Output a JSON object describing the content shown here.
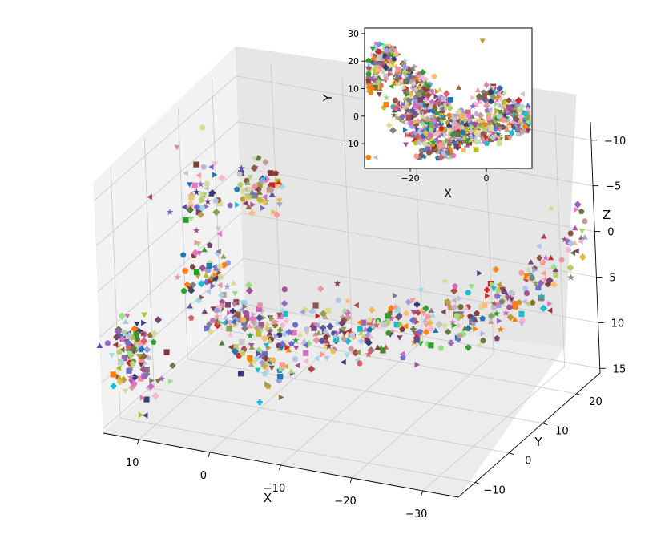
{
  "chart_data": [
    {
      "type": "scatter",
      "projection": "3d",
      "title": "",
      "xlabel": "X",
      "ylabel": "Y",
      "zlabel": "Z",
      "x_ticks": [
        "10",
        "0",
        "−10",
        "−20",
        "−30"
      ],
      "y_ticks": [
        "−10",
        "0",
        "10",
        "20"
      ],
      "z_ticks": [
        "−10",
        "−5",
        "0",
        "5",
        "10",
        "15"
      ],
      "xlim": [
        15,
        -35
      ],
      "ylim": [
        -15,
        27
      ],
      "zlim": [
        15.5,
        -12
      ],
      "grid": true,
      "legend": "none",
      "marker_styles": [
        "circle",
        "square",
        "triangle-up",
        "triangle-down",
        "triangle-left",
        "triangle-right",
        "pentagon",
        "star",
        "diamond",
        "plus"
      ],
      "palette": [
        "#1f77b4",
        "#ff7f0e",
        "#2ca02c",
        "#d62728",
        "#9467bd",
        "#8c564b",
        "#e377c2",
        "#7f7f7f",
        "#bcbd22",
        "#17becf",
        "#aec7e8",
        "#ffbb78",
        "#98df8a",
        "#ff9896",
        "#c5b0d5",
        "#c49c94",
        "#f7b6d2",
        "#c7c7c7",
        "#dbdb8d",
        "#9edae5",
        "#393b79",
        "#5254a3",
        "#6b6ecf",
        "#9c9ede",
        "#637939",
        "#8ca252",
        "#b5cf6b",
        "#cedb9c",
        "#8c6d31",
        "#bd9e39",
        "#e7ba52",
        "#843c39",
        "#ad494a",
        "#d6616b",
        "#e7969c",
        "#7b4173",
        "#a55194",
        "#ce6dbd"
      ],
      "clusters": [
        {
          "x": 10,
          "y": 22,
          "z": 0,
          "spread": [
            1.5,
            1.5,
            1.5
          ],
          "n": 60
        },
        {
          "x": 12,
          "y": 10,
          "z": -3,
          "spread": [
            2,
            2,
            2
          ],
          "n": 50
        },
        {
          "x": 8,
          "y": 2,
          "z": 3,
          "spread": [
            2,
            2,
            2
          ],
          "n": 60
        },
        {
          "x": 14,
          "y": -8,
          "z": 8,
          "spread": [
            1.5,
            1.5,
            1.5
          ],
          "n": 60
        },
        {
          "x": 12,
          "y": -10,
          "z": 10,
          "spread": [
            2,
            2,
            2
          ],
          "n": 50
        },
        {
          "x": 2,
          "y": -3,
          "z": 5,
          "spread": [
            2,
            2,
            1.5
          ],
          "n": 60
        },
        {
          "x": -4,
          "y": -2,
          "z": 5.5,
          "spread": [
            2,
            2,
            1.5
          ],
          "n": 60
        },
        {
          "x": -10,
          "y": 0,
          "z": 6,
          "spread": [
            2,
            2,
            1.5
          ],
          "n": 60
        },
        {
          "x": -5,
          "y": -6,
          "z": 8,
          "spread": [
            2,
            2,
            2
          ],
          "n": 50
        },
        {
          "x": -15,
          "y": 2,
          "z": 6,
          "spread": [
            2,
            2,
            1.5
          ],
          "n": 50
        },
        {
          "x": -20,
          "y": 5,
          "z": 5,
          "spread": [
            2,
            2,
            1.5
          ],
          "n": 50
        },
        {
          "x": -25,
          "y": 8,
          "z": 5,
          "spread": [
            2,
            2,
            1.5
          ],
          "n": 50
        },
        {
          "x": -28,
          "y": 14,
          "z": 4.5,
          "spread": [
            1.5,
            2,
            1.5
          ],
          "n": 50
        },
        {
          "x": -31,
          "y": 20,
          "z": 3,
          "spread": [
            1.5,
            2,
            1.5
          ],
          "n": 40
        },
        {
          "x": -33,
          "y": 26,
          "z": 0,
          "spread": [
            1,
            1.5,
            1.5
          ],
          "n": 20
        }
      ]
    },
    {
      "type": "scatter",
      "title": "",
      "xlabel": "X",
      "ylabel": "Y",
      "x_ticks": [
        "−20",
        "0"
      ],
      "y_ticks": [
        "30",
        "20",
        "10",
        "0",
        "−10"
      ],
      "xlim": [
        -32,
        12
      ],
      "ylim": [
        -19,
        32
      ],
      "grid": false,
      "legend": "none",
      "outliers": [
        {
          "x": -1,
          "y": 27.5
        },
        {
          "x": -29,
          "y": -15
        },
        {
          "x": -31,
          "y": -15
        }
      ],
      "clusters": [
        {
          "x": -28,
          "y": 21,
          "spread": [
            2.5,
            2.5
          ],
          "n": 70
        },
        {
          "x": -22,
          "y": 15,
          "spread": [
            2.5,
            3
          ],
          "n": 70
        },
        {
          "x": -17,
          "y": 10,
          "spread": [
            2.5,
            2.5
          ],
          "n": 70
        },
        {
          "x": -20,
          "y": 2,
          "spread": [
            3,
            3
          ],
          "n": 80
        },
        {
          "x": -12,
          "y": 2,
          "spread": [
            3,
            3
          ],
          "n": 80
        },
        {
          "x": -17,
          "y": -6,
          "spread": [
            3,
            3
          ],
          "n": 80
        },
        {
          "x": -9,
          "y": -7,
          "spread": [
            3,
            3
          ],
          "n": 80
        },
        {
          "x": -3,
          "y": -3,
          "spread": [
            3,
            3
          ],
          "n": 80
        },
        {
          "x": 2,
          "y": -5,
          "spread": [
            2.5,
            2.5
          ],
          "n": 60
        },
        {
          "x": 6,
          "y": 2,
          "spread": [
            2.5,
            2.5
          ],
          "n": 60
        },
        {
          "x": 9,
          "y": -2,
          "spread": [
            2.5,
            2.5
          ],
          "n": 60
        },
        {
          "x": 1,
          "y": 8,
          "spread": [
            2,
            2
          ],
          "n": 40
        },
        {
          "x": -12,
          "y": -12,
          "spread": [
            2.5,
            2
          ],
          "n": 50
        },
        {
          "x": -30,
          "y": 12,
          "spread": [
            2,
            2
          ],
          "n": 40
        }
      ]
    }
  ]
}
